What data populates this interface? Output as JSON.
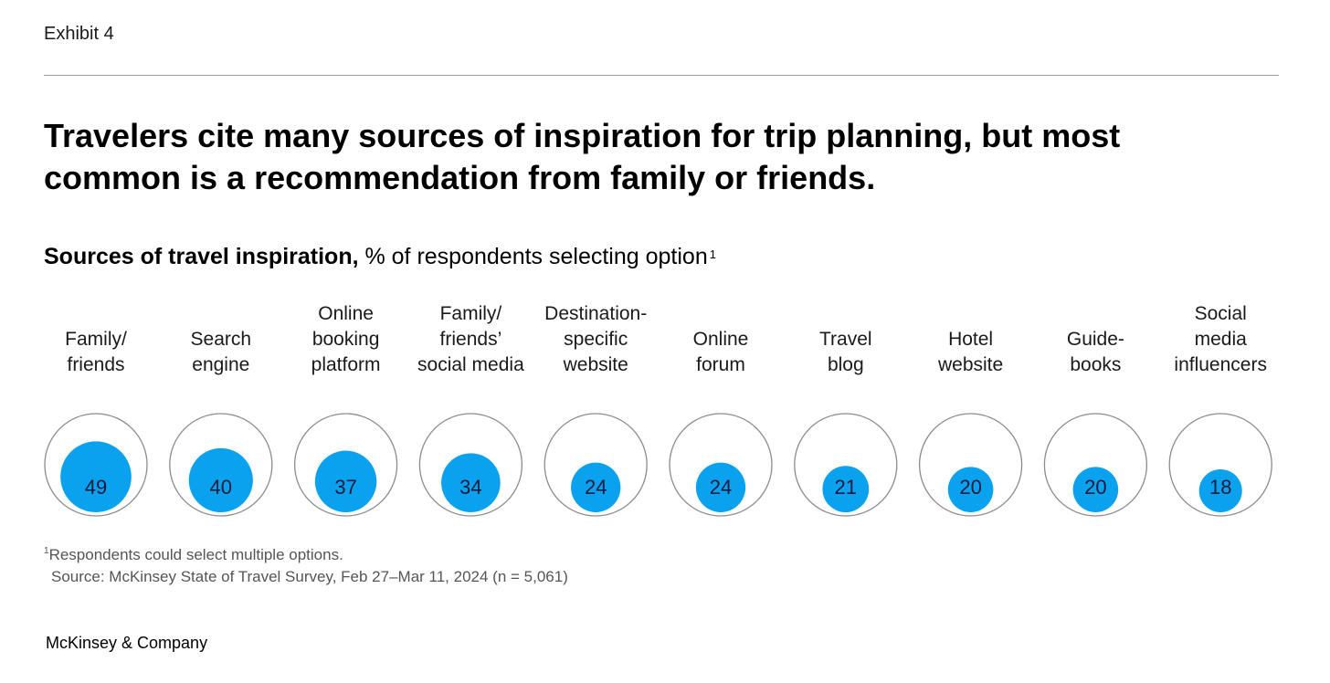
{
  "header": {
    "exhibit": "Exhibit 4",
    "title": "Travelers cite many sources of inspiration for trip planning, but most common is a recommendation from family or friends.",
    "subtitle_bold": "Sources of travel inspiration,",
    "subtitle_rest": " % of respondents selecting option",
    "subtitle_note_marker": "1"
  },
  "chart_data": {
    "type": "bubble",
    "unit": "% of respondents selecting option",
    "categories": [
      [
        "Family/",
        "friends"
      ],
      [
        "Search",
        "engine"
      ],
      [
        "Online",
        "booking",
        "platform"
      ],
      [
        "Family/",
        "friends’",
        "social media"
      ],
      [
        "Destination-",
        "specific",
        "website"
      ],
      [
        "Online",
        "forum"
      ],
      [
        "Travel",
        "blog"
      ],
      [
        "Hotel",
        "website"
      ],
      [
        "Guide-",
        "books"
      ],
      [
        "Social",
        "media",
        "influencers"
      ]
    ],
    "values": [
      49,
      40,
      37,
      34,
      24,
      24,
      21,
      20,
      20,
      18
    ],
    "max_value": 100,
    "colors": {
      "fill": "#0aa2ee",
      "outline": "#8c8c8c"
    }
  },
  "footer": {
    "note_marker": "1",
    "note": "Respondents could select multiple options.",
    "source": "Source: McKinsey State of Travel Survey, Feb 27–Mar 11, 2024 (n = 5,061)",
    "brand": "McKinsey & Company"
  }
}
